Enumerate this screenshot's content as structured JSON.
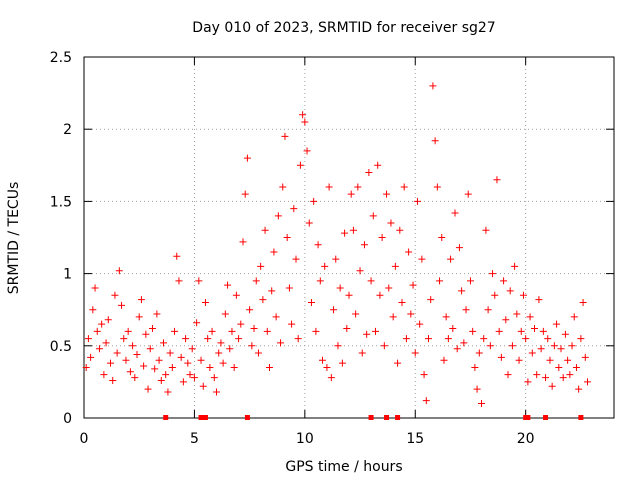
{
  "chart_data": {
    "type": "scatter",
    "title": "Day 010 of 2023, SRMTID for receiver sg27",
    "xlabel": "GPS time / hours",
    "ylabel": "SRMTID / TECUs",
    "xlim": [
      0,
      24
    ],
    "ylim": [
      0,
      2.5
    ],
    "x_ticks": [
      0,
      5,
      10,
      15,
      20
    ],
    "x_tick_labels": [
      "0",
      "5",
      "10",
      "15",
      "20"
    ],
    "y_ticks": [
      0,
      0.5,
      1,
      1.5,
      2,
      2.5
    ],
    "y_tick_labels": [
      "0",
      "0.5",
      "1",
      "1.5",
      "2",
      "2.5"
    ],
    "grid": true,
    "marker": "+",
    "color": "#ff0000",
    "series": [
      {
        "name": "SRMTID",
        "marker": "+",
        "points": [
          [
            0.1,
            0.35
          ],
          [
            0.2,
            0.55
          ],
          [
            0.3,
            0.42
          ],
          [
            0.4,
            0.75
          ],
          [
            0.5,
            0.9
          ],
          [
            0.6,
            0.6
          ],
          [
            0.7,
            0.48
          ],
          [
            0.8,
            0.65
          ],
          [
            0.9,
            0.3
          ],
          [
            1.0,
            0.52
          ],
          [
            1.1,
            0.68
          ],
          [
            1.2,
            0.38
          ],
          [
            1.3,
            0.26
          ],
          [
            1.4,
            0.85
          ],
          [
            1.5,
            0.45
          ],
          [
            1.6,
            1.02
          ],
          [
            1.7,
            0.78
          ],
          [
            1.8,
            0.55
          ],
          [
            1.9,
            0.4
          ],
          [
            2.0,
            0.6
          ],
          [
            2.1,
            0.32
          ],
          [
            2.2,
            0.5
          ],
          [
            2.3,
            0.28
          ],
          [
            2.4,
            0.44
          ],
          [
            2.5,
            0.7
          ],
          [
            2.6,
            0.82
          ],
          [
            2.7,
            0.36
          ],
          [
            2.8,
            0.58
          ],
          [
            2.9,
            0.2
          ],
          [
            3.0,
            0.48
          ],
          [
            3.1,
            0.62
          ],
          [
            3.2,
            0.34
          ],
          [
            3.3,
            0.72
          ],
          [
            3.4,
            0.4
          ],
          [
            3.5,
            0.26
          ],
          [
            3.6,
            0.52
          ],
          [
            3.7,
            0.3
          ],
          [
            3.8,
            0.18
          ],
          [
            3.9,
            0.45
          ],
          [
            4.0,
            0.35
          ],
          [
            4.1,
            0.6
          ],
          [
            4.2,
            1.12
          ],
          [
            4.3,
            0.95
          ],
          [
            4.4,
            0.42
          ],
          [
            4.5,
            0.25
          ],
          [
            4.6,
            0.55
          ],
          [
            4.7,
            0.38
          ],
          [
            4.8,
            0.3
          ],
          [
            4.9,
            0.48
          ],
          [
            5.0,
            0.28
          ],
          [
            5.1,
            0.66
          ],
          [
            5.2,
            0.95
          ],
          [
            5.3,
            0.4
          ],
          [
            5.4,
            0.22
          ],
          [
            5.5,
            0.8
          ],
          [
            5.6,
            0.55
          ],
          [
            5.7,
            0.35
          ],
          [
            5.8,
            0.6
          ],
          [
            5.9,
            0.28
          ],
          [
            6.0,
            0.18
          ],
          [
            6.1,
            0.45
          ],
          [
            6.2,
            0.52
          ],
          [
            6.3,
            0.38
          ],
          [
            6.4,
            0.72
          ],
          [
            6.5,
            0.92
          ],
          [
            6.6,
            0.48
          ],
          [
            6.7,
            0.6
          ],
          [
            6.8,
            0.35
          ],
          [
            6.9,
            0.85
          ],
          [
            7.0,
            0.55
          ],
          [
            7.1,
            0.65
          ],
          [
            7.2,
            1.22
          ],
          [
            7.3,
            1.55
          ],
          [
            7.4,
            1.8
          ],
          [
            7.5,
            0.75
          ],
          [
            7.6,
            0.5
          ],
          [
            7.7,
            0.62
          ],
          [
            7.8,
            0.95
          ],
          [
            7.9,
            0.45
          ],
          [
            8.0,
            1.05
          ],
          [
            8.1,
            0.82
          ],
          [
            8.2,
            1.3
          ],
          [
            8.3,
            0.6
          ],
          [
            8.4,
            0.35
          ],
          [
            8.5,
            0.88
          ],
          [
            8.6,
            1.15
          ],
          [
            8.7,
            0.7
          ],
          [
            8.8,
            1.4
          ],
          [
            8.9,
            0.52
          ],
          [
            9.0,
            1.6
          ],
          [
            9.1,
            1.95
          ],
          [
            9.2,
            1.25
          ],
          [
            9.3,
            0.9
          ],
          [
            9.4,
            0.65
          ],
          [
            9.5,
            1.45
          ],
          [
            9.6,
            1.1
          ],
          [
            9.7,
            0.55
          ],
          [
            9.8,
            1.75
          ],
          [
            9.9,
            2.1
          ],
          [
            10.0,
            2.05
          ],
          [
            10.1,
            1.85
          ],
          [
            10.2,
            1.35
          ],
          [
            10.3,
            0.8
          ],
          [
            10.4,
            1.5
          ],
          [
            10.5,
            0.6
          ],
          [
            10.6,
            1.2
          ],
          [
            10.7,
            0.95
          ],
          [
            10.8,
            0.4
          ],
          [
            10.9,
            1.05
          ],
          [
            11.0,
            0.35
          ],
          [
            11.1,
            1.6
          ],
          [
            11.2,
            0.28
          ],
          [
            11.3,
            0.75
          ],
          [
            11.4,
            1.1
          ],
          [
            11.5,
            0.5
          ],
          [
            11.6,
            0.9
          ],
          [
            11.7,
            0.38
          ],
          [
            11.8,
            1.28
          ],
          [
            11.9,
            0.62
          ],
          [
            12.0,
            0.85
          ],
          [
            12.1,
            1.55
          ],
          [
            12.2,
            1.3
          ],
          [
            12.3,
            0.72
          ],
          [
            12.4,
            1.6
          ],
          [
            12.5,
            1.02
          ],
          [
            12.6,
            0.45
          ],
          [
            12.7,
            1.2
          ],
          [
            12.8,
            0.58
          ],
          [
            12.9,
            1.7
          ],
          [
            13.0,
            0.95
          ],
          [
            13.1,
            1.4
          ],
          [
            13.2,
            0.6
          ],
          [
            13.3,
            1.75
          ],
          [
            13.4,
            0.85
          ],
          [
            13.5,
            1.25
          ],
          [
            13.6,
            0.5
          ],
          [
            13.7,
            1.55
          ],
          [
            13.8,
            0.9
          ],
          [
            13.9,
            1.35
          ],
          [
            14.0,
            0.7
          ],
          [
            14.1,
            1.05
          ],
          [
            14.2,
            0.38
          ],
          [
            14.3,
            1.3
          ],
          [
            14.4,
            0.8
          ],
          [
            14.5,
            1.6
          ],
          [
            14.6,
            0.55
          ],
          [
            14.7,
            1.15
          ],
          [
            14.8,
            0.72
          ],
          [
            14.9,
            0.92
          ],
          [
            15.0,
            0.45
          ],
          [
            15.1,
            1.5
          ],
          [
            15.2,
            0.65
          ],
          [
            15.3,
            1.1
          ],
          [
            15.4,
            0.3
          ],
          [
            15.5,
            0.12
          ],
          [
            15.6,
            0.55
          ],
          [
            15.7,
            0.82
          ],
          [
            15.8,
            2.3
          ],
          [
            15.9,
            1.92
          ],
          [
            16.0,
            1.6
          ],
          [
            16.1,
            0.95
          ],
          [
            16.2,
            1.25
          ],
          [
            16.3,
            0.4
          ],
          [
            16.4,
            0.7
          ],
          [
            16.5,
            0.55
          ],
          [
            16.6,
            1.1
          ],
          [
            16.7,
            0.62
          ],
          [
            16.8,
            1.42
          ],
          [
            16.9,
            0.48
          ],
          [
            17.0,
            1.18
          ],
          [
            17.1,
            0.88
          ],
          [
            17.2,
            0.52
          ],
          [
            17.3,
            0.75
          ],
          [
            17.4,
            1.55
          ],
          [
            17.5,
            0.95
          ],
          [
            17.6,
            0.6
          ],
          [
            17.7,
            0.35
          ],
          [
            17.8,
            0.2
          ],
          [
            17.9,
            0.45
          ],
          [
            18.0,
            0.1
          ],
          [
            18.1,
            0.55
          ],
          [
            18.2,
            1.3
          ],
          [
            18.3,
            0.75
          ],
          [
            18.4,
            0.5
          ],
          [
            18.5,
            1.0
          ],
          [
            18.6,
            0.85
          ],
          [
            18.7,
            1.65
          ],
          [
            18.8,
            0.6
          ],
          [
            18.9,
            0.42
          ],
          [
            19.0,
            0.95
          ],
          [
            19.1,
            0.68
          ],
          [
            19.2,
            0.3
          ],
          [
            19.3,
            0.88
          ],
          [
            19.4,
            0.5
          ],
          [
            19.5,
            1.05
          ],
          [
            19.6,
            0.72
          ],
          [
            19.7,
            0.4
          ],
          [
            19.8,
            0.6
          ],
          [
            19.9,
            0.85
          ],
          [
            20.0,
            0.55
          ],
          [
            20.1,
            0.25
          ],
          [
            20.2,
            0.7
          ],
          [
            20.3,
            0.45
          ],
          [
            20.4,
            0.62
          ],
          [
            20.5,
            0.3
          ],
          [
            20.6,
            0.82
          ],
          [
            20.7,
            0.48
          ],
          [
            20.8,
            0.6
          ],
          [
            20.9,
            0.28
          ],
          [
            21.0,
            0.55
          ],
          [
            21.1,
            0.4
          ],
          [
            21.2,
            0.22
          ],
          [
            21.3,
            0.5
          ],
          [
            21.4,
            0.65
          ],
          [
            21.5,
            0.35
          ],
          [
            21.6,
            0.48
          ],
          [
            21.7,
            0.28
          ],
          [
            21.8,
            0.58
          ],
          [
            21.9,
            0.4
          ],
          [
            22.0,
            0.3
          ],
          [
            22.1,
            0.5
          ],
          [
            22.2,
            0.7
          ],
          [
            22.3,
            0.35
          ],
          [
            22.4,
            0.2
          ],
          [
            22.5,
            0.55
          ],
          [
            22.6,
            0.8
          ],
          [
            22.7,
            0.42
          ],
          [
            22.8,
            0.25
          ]
        ]
      }
    ],
    "zero_markers_x": [
      3.7,
      5.3,
      5.5,
      7.4,
      13.0,
      13.7,
      14.2,
      20.0,
      20.1,
      20.9,
      22.5
    ]
  }
}
